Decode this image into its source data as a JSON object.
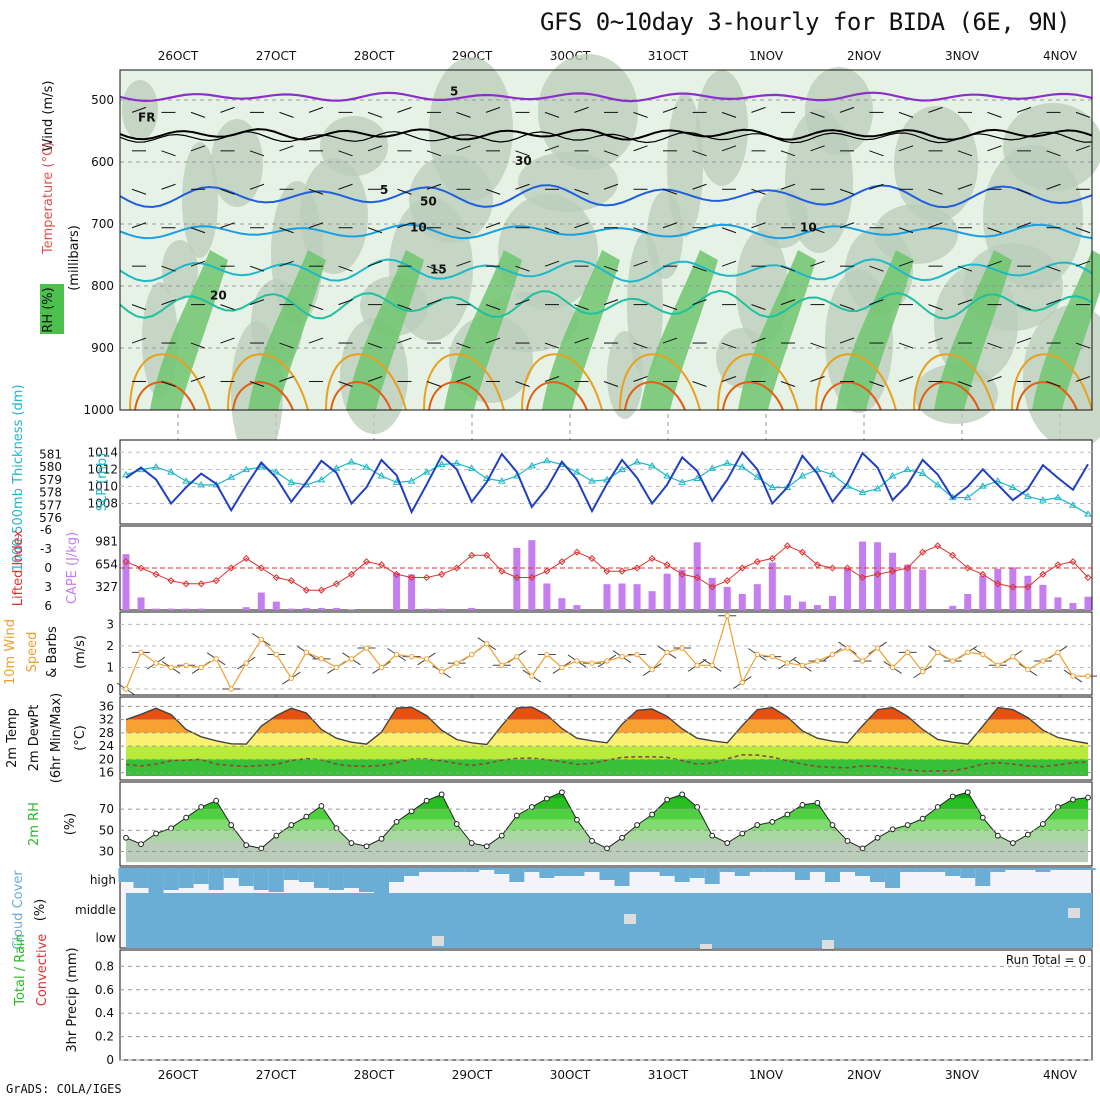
{
  "title": "GFS 0~10day 3-hourly for BIDA (6E, 9N)",
  "footer": "GrADS: COLA/IGES",
  "dates": [
    "26OCT",
    "27OCT",
    "28OCT",
    "29OCT",
    "30OCT",
    "31OCT",
    "1NOV",
    "2NOV",
    "3NOV",
    "4NOV"
  ],
  "colors": {
    "rh_light": "#e6f2e6",
    "rh_mid": "#b9ccb9",
    "rh_dark": "#6fc66f",
    "temp_line": "#8b2fc9",
    "freezing": "#000000",
    "wind_blue": "#1f5fe0",
    "thickness": "#1fb8c8",
    "slp": "#2040c0",
    "cape_bar": "#c47ef0",
    "lifted": "#e03030",
    "wind10": "#f0a030",
    "rh2m": "#28b828",
    "cloud": "#6aaed6",
    "cloud_bg": "#f5f3fa"
  },
  "panels": {
    "upper_air": {
      "ylabel_wind": "Wind (m/s)",
      "ylabel_temp": "Temperature (°C)",
      "ylabel_rh": "RH (%)",
      "ylabel_mb": "(millibars)",
      "levels": [
        500,
        600,
        700,
        800,
        900,
        1000
      ],
      "contour_labels": [
        "5",
        "FR",
        "5",
        "10",
        "15",
        "20",
        "10",
        "30",
        "50"
      ]
    },
    "slp": {
      "ylabel_left": "1000-500mb Thickness (dm)",
      "ylabel_right": "SLP (mb)",
      "thick_ticks": [
        "581",
        "580",
        "579",
        "578",
        "577",
        "576"
      ],
      "slp_ticks": [
        "1014",
        "1012",
        "1010",
        "1008"
      ]
    },
    "cape": {
      "ylabel_left": "Lifted Index",
      "ylabel_right": "CAPE (J/kg)",
      "li_ticks": [
        "-6",
        "-3",
        "0",
        "3",
        "6"
      ],
      "cape_ticks": [
        "981",
        "654",
        "327"
      ]
    },
    "wind10m": {
      "ylabel": "10m Wind",
      "ylabel2": "Speed",
      "ylabel3": "& Barbs",
      "unit": "(m/s)",
      "ticks": [
        "3",
        "2",
        "1",
        "0"
      ]
    },
    "temp2m": {
      "ylabel1": "2m Temp",
      "ylabel2": "2m DewPt",
      "ylabel3": "(6hr Min/Max)",
      "unit": "(°C)",
      "ticks": [
        "36",
        "32",
        "28",
        "24",
        "20",
        "16"
      ]
    },
    "rh2m": {
      "ylabel": "2m RH",
      "unit": "(%)",
      "ticks": [
        "70",
        "50",
        "30"
      ]
    },
    "cloud": {
      "ylabel": "Cloud Cover",
      "unit": "(%)",
      "rows": [
        "high",
        "middle",
        "low"
      ]
    },
    "precip": {
      "ylabel1": "Total / Rain",
      "ylabel2": "Convective",
      "ylabel3": "3hr Precip (mm)",
      "run_total": "Run Total = 0",
      "ticks": [
        "0.8",
        "0.6",
        "0.4",
        "0.2",
        "0"
      ]
    }
  },
  "chart_data": [
    {
      "type": "line",
      "title": "1000-500mb Thickness (dm) / SLP (mb)",
      "x_unit": "3-hourly steps from 25OCT 12Z",
      "series": [
        {
          "name": "SLP (mb)",
          "values": [
            1011.0,
            1012.2,
            1010.8,
            1008.0,
            1009.9,
            1011.5,
            1010.3,
            1007.2,
            1010.1,
            1012.8,
            1011.0,
            1008.2,
            1010.5,
            1013.0,
            1011.6,
            1008.0,
            1009.9,
            1013.1,
            1011.3,
            1007.0,
            1010.2,
            1013.6,
            1012.0,
            1008.2,
            1010.5,
            1013.8,
            1011.7,
            1007.6,
            1009.8,
            1012.9,
            1010.8,
            1007.1,
            1010.3,
            1013.1,
            1011.0,
            1008.0,
            1010.2,
            1013.4,
            1011.8,
            1008.3,
            1010.8,
            1014.0,
            1012.0,
            1008.0,
            1009.9,
            1013.6,
            1011.5,
            1008.2,
            1010.4,
            1013.9,
            1012.2,
            1008.4,
            1010.2,
            1013.1,
            1011.4,
            1008.6,
            1010.0,
            1012.0,
            1010.2,
            1008.4,
            1009.7,
            1012.5,
            1011.0,
            1009.6,
            1012.6
          ]
        },
        {
          "name": "1000-500mb Thickness (dm)",
          "values": [
            579.4,
            579.8,
            580.0,
            579.6,
            578.9,
            578.6,
            578.6,
            579.2,
            579.8,
            580.0,
            579.6,
            578.8,
            578.6,
            579.0,
            579.9,
            580.4,
            580.0,
            579.3,
            578.8,
            578.9,
            579.6,
            580.2,
            580.3,
            579.9,
            579.1,
            578.9,
            579.3,
            580.1,
            580.5,
            580.2,
            579.6,
            578.9,
            579.0,
            579.8,
            580.4,
            580.1,
            579.3,
            578.8,
            579.1,
            579.9,
            580.3,
            580.0,
            579.2,
            578.4,
            578.4,
            579.3,
            579.8,
            579.4,
            578.5,
            578.0,
            578.3,
            579.3,
            579.8,
            579.5,
            578.6,
            577.6,
            577.6,
            578.5,
            578.9,
            578.4,
            577.7,
            577.4,
            577.6,
            577.0,
            576.3
          ]
        }
      ]
    },
    {
      "type": "bar",
      "title": "CAPE (J/kg) and Lifted Index",
      "series": [
        {
          "name": "CAPE (J/kg)",
          "values": [
            800,
            180,
            20,
            20,
            20,
            20,
            0,
            0,
            40,
            250,
            120,
            20,
            30,
            30,
            30,
            10,
            0,
            0,
            530,
            510,
            20,
            20,
            0,
            30,
            0,
            0,
            890,
            1000,
            380,
            170,
            70,
            0,
            370,
            380,
            370,
            270,
            520,
            580,
            970,
            460,
            330,
            230,
            370,
            680,
            210,
            120,
            70,
            200,
            600,
            980,
            970,
            820,
            650,
            580,
            0,
            60,
            230,
            490,
            590,
            610,
            490,
            360,
            180,
            100,
            190
          ]
        },
        {
          "name": "Lifted Index",
          "values": [
            -1.0,
            0.0,
            1.0,
            2.0,
            2.5,
            2.5,
            2.0,
            0.0,
            -1.5,
            0.0,
            1.5,
            2.0,
            3.5,
            3.5,
            2.5,
            1.0,
            -1.0,
            -0.5,
            1.0,
            1.5,
            1.5,
            1.0,
            0.0,
            -2.0,
            -2.0,
            0.5,
            1.5,
            1.5,
            0.5,
            -1.0,
            -2.5,
            -1.5,
            0.5,
            0.5,
            0.0,
            -1.5,
            -0.5,
            1.0,
            1.5,
            3.0,
            2.0,
            0.0,
            -1.0,
            -1.5,
            -3.5,
            -2.5,
            -0.5,
            0.0,
            0.0,
            1.5,
            1.0,
            0.5,
            0.0,
            -2.5,
            -3.5,
            -2.0,
            0.0,
            1.0,
            2.5,
            3.0,
            3.0,
            1.0,
            -0.5,
            -1.0,
            1.5
          ]
        }
      ]
    },
    {
      "type": "line",
      "title": "10m Wind Speed (m/s)",
      "series": [
        {
          "name": "10m Wind Speed",
          "values": [
            0.0,
            1.7,
            1.2,
            1.0,
            1.1,
            1.0,
            1.4,
            0.0,
            1.2,
            2.3,
            1.6,
            0.5,
            1.7,
            1.4,
            1.0,
            1.4,
            1.9,
            1.0,
            1.6,
            1.5,
            1.4,
            0.8,
            1.2,
            1.6,
            2.1,
            1.1,
            1.5,
            0.6,
            1.6,
            1.0,
            1.3,
            1.2,
            1.3,
            1.5,
            1.6,
            0.9,
            1.7,
            1.9,
            1.1,
            1.1,
            3.4,
            0.3,
            1.6,
            1.5,
            1.2,
            1.1,
            1.3,
            1.6,
            1.9,
            1.3,
            1.9,
            1.0,
            1.7,
            0.8,
            1.7,
            1.3,
            1.7,
            1.6,
            1.1,
            1.5,
            0.9,
            1.3,
            1.7,
            0.6,
            0.6
          ]
        }
      ]
    },
    {
      "type": "area",
      "title": "2m Temp / 2m DewPt (°C)",
      "series": [
        {
          "name": "2m Temp",
          "values": [
            32.0,
            33.6,
            35.4,
            33.5,
            29.0,
            26.8,
            25.6,
            24.7,
            24.6,
            30.0,
            33.2,
            35.4,
            34.0,
            29.0,
            26.4,
            25.2,
            24.6,
            28.2,
            35.5,
            35.7,
            33.2,
            28.8,
            26.0,
            25.0,
            24.5,
            30.2,
            35.5,
            35.8,
            33.4,
            29.3,
            26.4,
            25.6,
            25.0,
            30.6,
            34.8,
            35.2,
            33.0,
            29.2,
            26.4,
            25.6,
            25.0,
            30.2,
            35.0,
            35.6,
            32.8,
            28.6,
            26.4,
            25.5,
            25.0,
            30.2,
            35.0,
            35.6,
            33.0,
            29.0,
            26.0,
            25.2,
            24.6,
            30.0,
            35.6,
            35.0,
            32.6,
            28.8,
            26.6,
            25.6,
            24.8
          ]
        },
        {
          "name": "2m DewPt",
          "values": [
            18.5,
            18.0,
            18.6,
            19.6,
            19.8,
            20.0,
            18.6,
            18.2,
            17.9,
            18.2,
            18.5,
            19.7,
            20.2,
            19.9,
            18.6,
            18.0,
            17.9,
            18.2,
            19.0,
            20.1,
            20.1,
            19.6,
            18.8,
            18.2,
            18.8,
            19.8,
            20.3,
            20.4,
            19.9,
            19.3,
            18.5,
            18.8,
            19.8,
            20.6,
            20.8,
            20.8,
            20.6,
            19.6,
            18.6,
            18.9,
            20.2,
            21.4,
            21.3,
            20.7,
            19.6,
            18.6,
            17.9,
            17.6,
            17.5,
            18.0,
            17.9,
            17.4,
            16.8,
            16.5,
            16.5,
            16.6,
            17.4,
            18.6,
            19.0,
            18.6,
            18.0,
            17.8,
            18.3,
            19.0,
            19.2
          ]
        }
      ]
    },
    {
      "type": "area",
      "title": "2m RH (%)",
      "series": [
        {
          "name": "2m RH",
          "values": [
            43,
            37,
            47,
            52,
            62,
            72,
            78,
            55,
            36,
            33,
            45,
            55,
            63,
            73,
            52,
            38,
            35,
            42,
            58,
            68,
            78,
            84,
            56,
            38,
            35,
            45,
            64,
            72,
            80,
            86,
            60,
            40,
            33,
            43,
            55,
            65,
            79,
            84,
            72,
            45,
            38,
            47,
            55,
            58,
            65,
            74,
            76,
            55,
            40,
            33,
            43,
            51,
            55,
            61,
            72,
            82,
            86,
            62,
            45,
            38,
            46,
            56,
            72,
            79,
            81
          ]
        }
      ]
    },
    {
      "type": "bar",
      "title": "3hr Precip (mm)",
      "series": [
        {
          "name": "3hr Precip",
          "values": [
            0,
            0,
            0,
            0,
            0,
            0,
            0,
            0,
            0,
            0
          ]
        }
      ],
      "ylim": [
        0,
        0.9
      ]
    }
  ]
}
